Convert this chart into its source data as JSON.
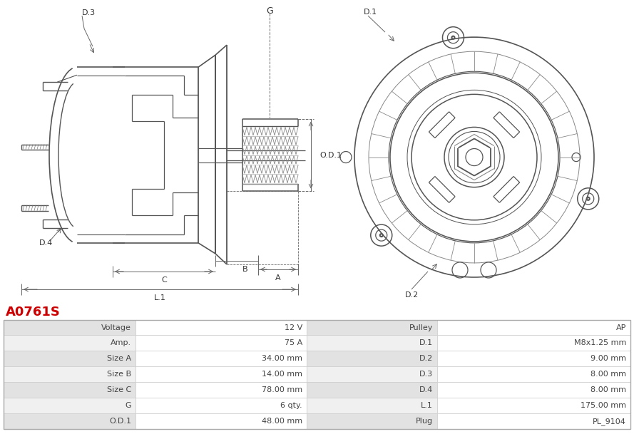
{
  "title": "A0761S",
  "title_color": "#cc0000",
  "table_headers_left": [
    "Voltage",
    "Amp.",
    "Size A",
    "Size B",
    "Size C",
    "G",
    "O.D.1"
  ],
  "table_values_left": [
    "12 V",
    "75 A",
    "34.00 mm",
    "14.00 mm",
    "78.00 mm",
    "6 qty.",
    "48.00 mm"
  ],
  "table_headers_right": [
    "Pulley",
    "D.1",
    "D.2",
    "D.3",
    "D.4",
    "L.1",
    "Plug"
  ],
  "table_values_right": [
    "AP",
    "M8x1.25 mm",
    "9.00 mm",
    "8.00 mm",
    "8.00 mm",
    "175.00 mm",
    "PL_9104"
  ],
  "row_color_a": "#e2e2e2",
  "row_color_b": "#f0f0f0",
  "border_color": "#cccccc",
  "text_color": "#444444",
  "bg_color": "#ffffff",
  "dc": "#555555",
  "lc": "#333333",
  "dim_color": "#666666"
}
